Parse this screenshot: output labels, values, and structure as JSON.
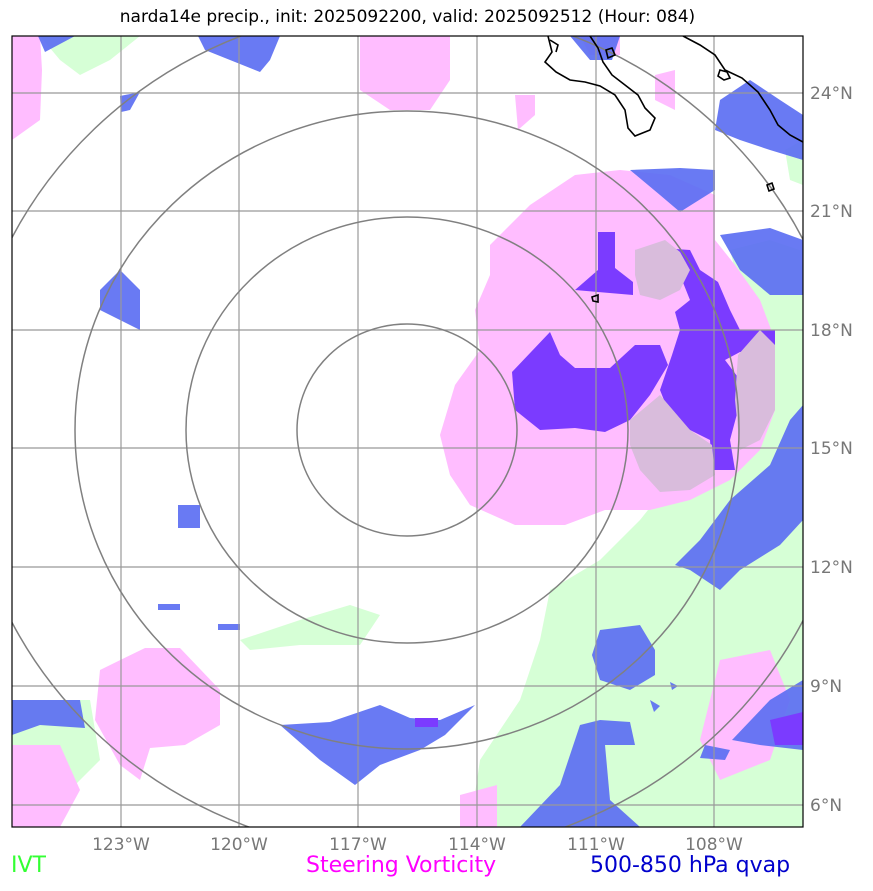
{
  "title": "narda14e precip., init: 2025092200, valid: 2025092512 (Hour: 084)",
  "legend": {
    "ivt": "IVT",
    "vorticity": "Steering Vorticity",
    "qvap": "500-850 hPa qvap"
  },
  "colors": {
    "ivt": "#d6ffd6",
    "vorticity": "#ffbdff",
    "qvap": "#5c6ff2",
    "qvap_overlap": "#7b3bff",
    "grid": "#999999",
    "range_ring": "#808080",
    "coastline": "#000000"
  },
  "latitude_labels": [
    "24°N",
    "21°N",
    "18°N",
    "15°N",
    "12°N",
    "9°N",
    "6°N"
  ],
  "longitude_labels": [
    "123°W",
    "120°W",
    "117°W",
    "114°W",
    "111°W",
    "108°W"
  ],
  "range_rings": 4
}
